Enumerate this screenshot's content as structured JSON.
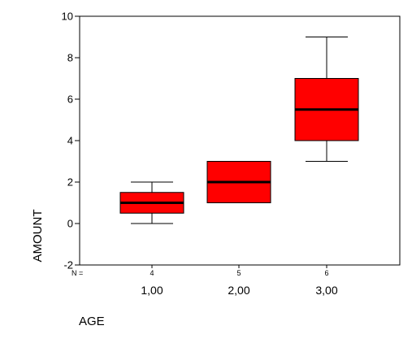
{
  "chart_data": {
    "type": "box",
    "xlabel": "AGE",
    "ylabel": "AMOUNT",
    "n_label": "N =",
    "ylim": [
      -2,
      10
    ],
    "yticks": [
      -2,
      0,
      2,
      4,
      6,
      8,
      10
    ],
    "grid": false,
    "legend": "none",
    "box_color": "#ff0000",
    "median_color": "#000000",
    "categories": [
      "1,00",
      "2,00",
      "3,00"
    ],
    "n": [
      "4",
      "5",
      "6"
    ],
    "boxes": [
      {
        "category": "1,00",
        "n": "4",
        "min": 0,
        "q1": 0.5,
        "median": 1,
        "q3": 1.5,
        "max": 2
      },
      {
        "category": "2,00",
        "n": "5",
        "min": 1,
        "q1": 1,
        "median": 2,
        "q3": 3,
        "max": 3
      },
      {
        "category": "3,00",
        "n": "6",
        "min": 3,
        "q1": 4,
        "median": 5.5,
        "q3": 7,
        "max": 9
      }
    ]
  }
}
